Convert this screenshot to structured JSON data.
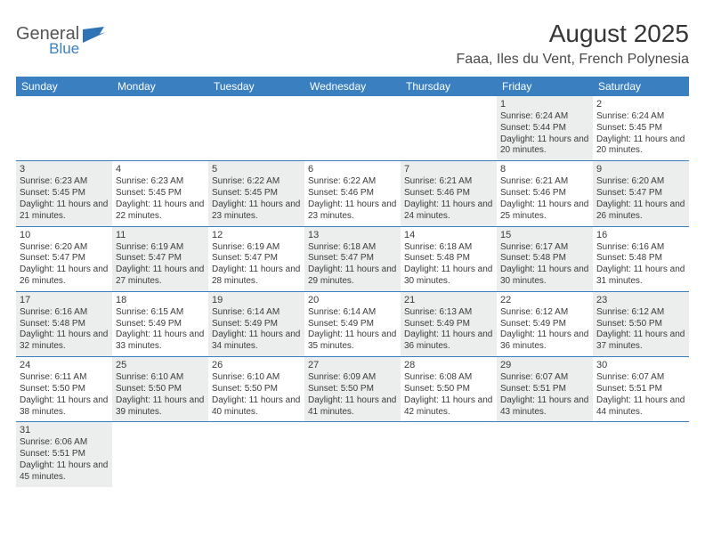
{
  "logo": {
    "word1": "General",
    "word2": "Blue",
    "flag_color": "#2d74b6"
  },
  "title": "August 2025",
  "location": "Faaa, Iles du Vent, French Polynesia",
  "colors": {
    "header_bg": "#3a7fbf",
    "header_text": "#ffffff",
    "row_alt": "#eceded",
    "border": "#3a7fbf",
    "text": "#3b3b3b"
  },
  "day_names": [
    "Sunday",
    "Monday",
    "Tuesday",
    "Wednesday",
    "Thursday",
    "Friday",
    "Saturday"
  ],
  "weeks": [
    [
      {
        "empty": true
      },
      {
        "empty": true
      },
      {
        "empty": true
      },
      {
        "empty": true
      },
      {
        "empty": true
      },
      {
        "num": "1",
        "sunrise": "Sunrise: 6:24 AM",
        "sunset": "Sunset: 5:44 PM",
        "daylight": "Daylight: 11 hours and 20 minutes.",
        "gray": true
      },
      {
        "num": "2",
        "sunrise": "Sunrise: 6:24 AM",
        "sunset": "Sunset: 5:45 PM",
        "daylight": "Daylight: 11 hours and 20 minutes.",
        "gray": false
      }
    ],
    [
      {
        "num": "3",
        "sunrise": "Sunrise: 6:23 AM",
        "sunset": "Sunset: 5:45 PM",
        "daylight": "Daylight: 11 hours and 21 minutes.",
        "gray": true
      },
      {
        "num": "4",
        "sunrise": "Sunrise: 6:23 AM",
        "sunset": "Sunset: 5:45 PM",
        "daylight": "Daylight: 11 hours and 22 minutes.",
        "gray": false
      },
      {
        "num": "5",
        "sunrise": "Sunrise: 6:22 AM",
        "sunset": "Sunset: 5:45 PM",
        "daylight": "Daylight: 11 hours and 23 minutes.",
        "gray": true
      },
      {
        "num": "6",
        "sunrise": "Sunrise: 6:22 AM",
        "sunset": "Sunset: 5:46 PM",
        "daylight": "Daylight: 11 hours and 23 minutes.",
        "gray": false
      },
      {
        "num": "7",
        "sunrise": "Sunrise: 6:21 AM",
        "sunset": "Sunset: 5:46 PM",
        "daylight": "Daylight: 11 hours and 24 minutes.",
        "gray": true
      },
      {
        "num": "8",
        "sunrise": "Sunrise: 6:21 AM",
        "sunset": "Sunset: 5:46 PM",
        "daylight": "Daylight: 11 hours and 25 minutes.",
        "gray": false
      },
      {
        "num": "9",
        "sunrise": "Sunrise: 6:20 AM",
        "sunset": "Sunset: 5:47 PM",
        "daylight": "Daylight: 11 hours and 26 minutes.",
        "gray": true
      }
    ],
    [
      {
        "num": "10",
        "sunrise": "Sunrise: 6:20 AM",
        "sunset": "Sunset: 5:47 PM",
        "daylight": "Daylight: 11 hours and 26 minutes.",
        "gray": false
      },
      {
        "num": "11",
        "sunrise": "Sunrise: 6:19 AM",
        "sunset": "Sunset: 5:47 PM",
        "daylight": "Daylight: 11 hours and 27 minutes.",
        "gray": true
      },
      {
        "num": "12",
        "sunrise": "Sunrise: 6:19 AM",
        "sunset": "Sunset: 5:47 PM",
        "daylight": "Daylight: 11 hours and 28 minutes.",
        "gray": false
      },
      {
        "num": "13",
        "sunrise": "Sunrise: 6:18 AM",
        "sunset": "Sunset: 5:47 PM",
        "daylight": "Daylight: 11 hours and 29 minutes.",
        "gray": true
      },
      {
        "num": "14",
        "sunrise": "Sunrise: 6:18 AM",
        "sunset": "Sunset: 5:48 PM",
        "daylight": "Daylight: 11 hours and 30 minutes.",
        "gray": false
      },
      {
        "num": "15",
        "sunrise": "Sunrise: 6:17 AM",
        "sunset": "Sunset: 5:48 PM",
        "daylight": "Daylight: 11 hours and 30 minutes.",
        "gray": true
      },
      {
        "num": "16",
        "sunrise": "Sunrise: 6:16 AM",
        "sunset": "Sunset: 5:48 PM",
        "daylight": "Daylight: 11 hours and 31 minutes.",
        "gray": false
      }
    ],
    [
      {
        "num": "17",
        "sunrise": "Sunrise: 6:16 AM",
        "sunset": "Sunset: 5:48 PM",
        "daylight": "Daylight: 11 hours and 32 minutes.",
        "gray": true
      },
      {
        "num": "18",
        "sunrise": "Sunrise: 6:15 AM",
        "sunset": "Sunset: 5:49 PM",
        "daylight": "Daylight: 11 hours and 33 minutes.",
        "gray": false
      },
      {
        "num": "19",
        "sunrise": "Sunrise: 6:14 AM",
        "sunset": "Sunset: 5:49 PM",
        "daylight": "Daylight: 11 hours and 34 minutes.",
        "gray": true
      },
      {
        "num": "20",
        "sunrise": "Sunrise: 6:14 AM",
        "sunset": "Sunset: 5:49 PM",
        "daylight": "Daylight: 11 hours and 35 minutes.",
        "gray": false
      },
      {
        "num": "21",
        "sunrise": "Sunrise: 6:13 AM",
        "sunset": "Sunset: 5:49 PM",
        "daylight": "Daylight: 11 hours and 36 minutes.",
        "gray": true
      },
      {
        "num": "22",
        "sunrise": "Sunrise: 6:12 AM",
        "sunset": "Sunset: 5:49 PM",
        "daylight": "Daylight: 11 hours and 36 minutes.",
        "gray": false
      },
      {
        "num": "23",
        "sunrise": "Sunrise: 6:12 AM",
        "sunset": "Sunset: 5:50 PM",
        "daylight": "Daylight: 11 hours and 37 minutes.",
        "gray": true
      }
    ],
    [
      {
        "num": "24",
        "sunrise": "Sunrise: 6:11 AM",
        "sunset": "Sunset: 5:50 PM",
        "daylight": "Daylight: 11 hours and 38 minutes.",
        "gray": false
      },
      {
        "num": "25",
        "sunrise": "Sunrise: 6:10 AM",
        "sunset": "Sunset: 5:50 PM",
        "daylight": "Daylight: 11 hours and 39 minutes.",
        "gray": true
      },
      {
        "num": "26",
        "sunrise": "Sunrise: 6:10 AM",
        "sunset": "Sunset: 5:50 PM",
        "daylight": "Daylight: 11 hours and 40 minutes.",
        "gray": false
      },
      {
        "num": "27",
        "sunrise": "Sunrise: 6:09 AM",
        "sunset": "Sunset: 5:50 PM",
        "daylight": "Daylight: 11 hours and 41 minutes.",
        "gray": true
      },
      {
        "num": "28",
        "sunrise": "Sunrise: 6:08 AM",
        "sunset": "Sunset: 5:50 PM",
        "daylight": "Daylight: 11 hours and 42 minutes.",
        "gray": false
      },
      {
        "num": "29",
        "sunrise": "Sunrise: 6:07 AM",
        "sunset": "Sunset: 5:51 PM",
        "daylight": "Daylight: 11 hours and 43 minutes.",
        "gray": true
      },
      {
        "num": "30",
        "sunrise": "Sunrise: 6:07 AM",
        "sunset": "Sunset: 5:51 PM",
        "daylight": "Daylight: 11 hours and 44 minutes.",
        "gray": false
      }
    ],
    [
      {
        "num": "31",
        "sunrise": "Sunrise: 6:06 AM",
        "sunset": "Sunset: 5:51 PM",
        "daylight": "Daylight: 11 hours and 45 minutes.",
        "gray": true
      },
      {
        "empty": true
      },
      {
        "empty": true
      },
      {
        "empty": true
      },
      {
        "empty": true
      },
      {
        "empty": true
      },
      {
        "empty": true
      }
    ]
  ]
}
